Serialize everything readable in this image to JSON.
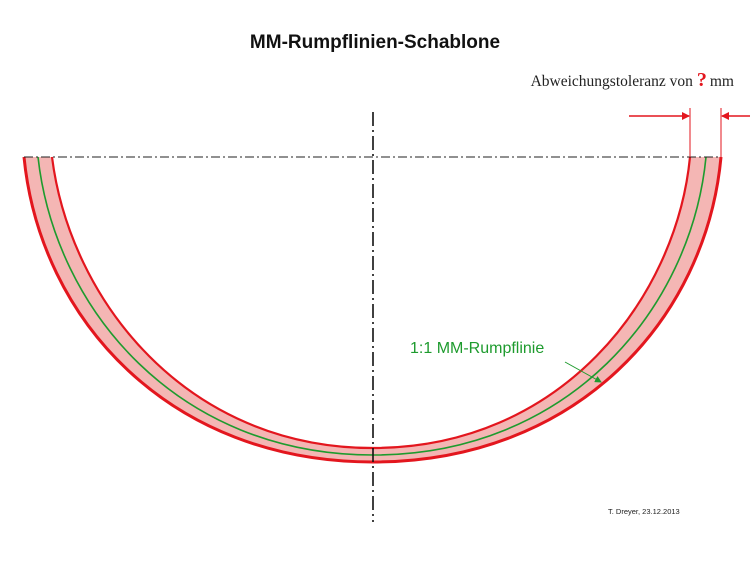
{
  "title": "MM-Rumpflinien-Schablone",
  "tolerance": {
    "prefix": "Abweichungstoleranz von",
    "mark": "?",
    "unit": "mm"
  },
  "curve_label": "1:1 MM-Rumpflinie",
  "credit": "T. Dreyer, 23.12.2013",
  "colors": {
    "band_fill": "#f4b6b4",
    "band_edge": "#e3161e",
    "center_curve": "#1e9b2e",
    "guide_lines": "#111111",
    "text": "#111111"
  }
}
